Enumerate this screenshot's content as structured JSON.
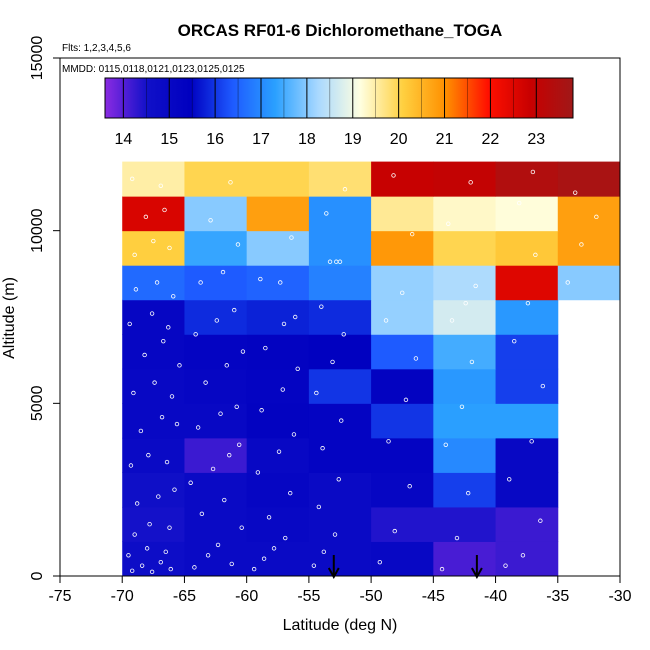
{
  "chart_data": {
    "type": "heatmap",
    "title": "ORCAS RF01-6 Dichloromethane_TOGA",
    "flights_label": "Flts: 1,2,3,4,5,6",
    "dates_label": "MMDD: 0115,0118,0121,0123,0125,0125",
    "xlabel": "Latitude (deg N)",
    "ylabel": "Altitude (m)",
    "xlim": [
      -75,
      -30
    ],
    "ylim": [
      0,
      15000
    ],
    "x_ticks": [
      -75,
      -70,
      -65,
      -60,
      -55,
      -50,
      -45,
      -40,
      -35,
      -30
    ],
    "x_tick_labels": [
      "-75",
      "-70",
      "-65",
      "-60",
      "-55",
      "-50",
      "-45",
      "-40",
      "-35",
      "-30"
    ],
    "y_ticks": [
      0,
      5000,
      10000,
      15000
    ],
    "y_tick_labels": [
      "0",
      "5000",
      "10000",
      "15000"
    ],
    "colorbar": {
      "min": 13.6,
      "max": 23.8,
      "ticks": [
        14,
        15,
        16,
        17,
        18,
        19,
        20,
        21,
        22,
        23
      ],
      "tick_labels": [
        "14",
        "15",
        "16",
        "17",
        "18",
        "19",
        "20",
        "21",
        "22",
        "23"
      ],
      "stops": [
        "#8a2be2",
        "#1010c8",
        "#0000c0",
        "#1e5aff",
        "#2aa0ff",
        "#a8d8ff",
        "#ffffe0",
        "#ffd040",
        "#ff9000",
        "#ff1000",
        "#c80000",
        "#a01818"
      ]
    },
    "lat_bins": [
      -70,
      -65,
      -60,
      -55,
      -50,
      -45,
      -40,
      -35,
      -30
    ],
    "alt_bins": [
      0,
      1000,
      2000,
      3000,
      4000,
      5000,
      6000,
      7000,
      8000,
      9000,
      10000,
      11000,
      12000
    ],
    "cells": [
      [
        14.7,
        14.9,
        14.9,
        14.9,
        15.0,
        14.1,
        14.2,
        null
      ],
      [
        14.5,
        14.9,
        15.0,
        14.9,
        14.4,
        14.4,
        14.2,
        null
      ],
      [
        14.6,
        14.9,
        15.1,
        14.9,
        15.1,
        16.1,
        15.0,
        null
      ],
      [
        14.9,
        14.2,
        15.0,
        15.2,
        15.2,
        17.0,
        15.0,
        null
      ],
      [
        15.0,
        15.0,
        15.3,
        15.2,
        16.0,
        17.3,
        17.3,
        null
      ],
      [
        15.0,
        15.1,
        15.2,
        16.0,
        15.3,
        17.2,
        16.1,
        null
      ],
      [
        15.1,
        15.2,
        15.3,
        15.4,
        16.4,
        17.5,
        16.1,
        null
      ],
      [
        15.1,
        15.9,
        15.8,
        15.9,
        18.1,
        18.7,
        17.2,
        null
      ],
      [
        16.6,
        16.4,
        16.5,
        16.9,
        18.1,
        18.3,
        22.5,
        18.0
      ],
      [
        20.1,
        17.4,
        18.0,
        17.1,
        20.9,
        20.0,
        20.2,
        20.8
      ],
      [
        22.6,
        18.0,
        20.8,
        17.1,
        19.6,
        19.3,
        19.2,
        20.8
      ],
      [
        19.5,
        20.0,
        20.0,
        19.8,
        22.9,
        23.0,
        23.4,
        23.6
      ]
    ],
    "points": [
      [
        -69.2,
        150
      ],
      [
        -68.4,
        300
      ],
      [
        -67.6,
        120
      ],
      [
        -66.9,
        400
      ],
      [
        -66.1,
        200
      ],
      [
        -69.5,
        600
      ],
      [
        -68.0,
        800
      ],
      [
        -66.5,
        700
      ],
      [
        -69.0,
        1200
      ],
      [
        -67.8,
        1500
      ],
      [
        -66.2,
        1400
      ],
      [
        -68.8,
        2100
      ],
      [
        -67.1,
        2300
      ],
      [
        -65.8,
        2500
      ],
      [
        -69.3,
        3200
      ],
      [
        -67.9,
        3500
      ],
      [
        -66.4,
        3300
      ],
      [
        -68.5,
        4200
      ],
      [
        -66.8,
        4600
      ],
      [
        -65.6,
        4400
      ],
      [
        -69.1,
        5300
      ],
      [
        -67.4,
        5600
      ],
      [
        -66.0,
        5200
      ],
      [
        -68.2,
        6400
      ],
      [
        -66.7,
        6800
      ],
      [
        -65.4,
        6100
      ],
      [
        -69.4,
        7300
      ],
      [
        -67.6,
        7600
      ],
      [
        -66.3,
        7200
      ],
      [
        -68.9,
        8300
      ],
      [
        -67.2,
        8500
      ],
      [
        -65.9,
        8100
      ],
      [
        -69.0,
        9300
      ],
      [
        -67.5,
        9700
      ],
      [
        -66.2,
        9500
      ],
      [
        -68.1,
        10400
      ],
      [
        -66.6,
        10600
      ],
      [
        -69.2,
        11500
      ],
      [
        -66.9,
        11300
      ],
      [
        -64.2,
        250
      ],
      [
        -63.1,
        600
      ],
      [
        -62.3,
        900
      ],
      [
        -61.2,
        350
      ],
      [
        -60.4,
        1400
      ],
      [
        -63.6,
        1800
      ],
      [
        -61.8,
        2200
      ],
      [
        -64.5,
        2700
      ],
      [
        -62.7,
        3100
      ],
      [
        -61.4,
        3500
      ],
      [
        -60.6,
        3800
      ],
      [
        -63.9,
        4300
      ],
      [
        -62.1,
        4700
      ],
      [
        -60.8,
        4900
      ],
      [
        -63.3,
        5600
      ],
      [
        -61.6,
        6100
      ],
      [
        -60.3,
        6500
      ],
      [
        -64.1,
        7000
      ],
      [
        -62.4,
        7400
      ],
      [
        -61.0,
        7700
      ],
      [
        -63.7,
        8500
      ],
      [
        -61.9,
        8800
      ],
      [
        -60.7,
        9600
      ],
      [
        -62.9,
        10300
      ],
      [
        -61.3,
        11400
      ],
      [
        -59.4,
        200
      ],
      [
        -58.6,
        500
      ],
      [
        -57.8,
        800
      ],
      [
        -56.9,
        1100
      ],
      [
        -58.2,
        1700
      ],
      [
        -56.5,
        2400
      ],
      [
        -59.1,
        3000
      ],
      [
        -57.4,
        3600
      ],
      [
        -56.2,
        4100
      ],
      [
        -58.8,
        4800
      ],
      [
        -57.1,
        5400
      ],
      [
        -55.9,
        6000
      ],
      [
        -58.5,
        6600
      ],
      [
        -57.0,
        7300
      ],
      [
        -56.1,
        7500
      ],
      [
        -58.9,
        8600
      ],
      [
        -57.3,
        8500
      ],
      [
        -56.4,
        9800
      ],
      [
        -54.6,
        300
      ],
      [
        -53.8,
        700
      ],
      [
        -52.9,
        1200
      ],
      [
        -54.2,
        2000
      ],
      [
        -52.6,
        2800
      ],
      [
        -53.9,
        3700
      ],
      [
        -52.4,
        4500
      ],
      [
        -54.4,
        5300
      ],
      [
        -53.1,
        6200
      ],
      [
        -52.2,
        7000
      ],
      [
        -54.0,
        7800
      ],
      [
        -53.3,
        9100
      ],
      [
        -52.8,
        9100
      ],
      [
        -52.5,
        9100
      ],
      [
        -53.6,
        10500
      ],
      [
        -52.1,
        11200
      ],
      [
        -49.3,
        400
      ],
      [
        -48.1,
        1300
      ],
      [
        -46.9,
        2600
      ],
      [
        -48.6,
        3900
      ],
      [
        -47.2,
        5100
      ],
      [
        -46.4,
        6300
      ],
      [
        -48.8,
        7400
      ],
      [
        -47.5,
        8200
      ],
      [
        -46.7,
        9900
      ],
      [
        -48.2,
        11600
      ],
      [
        -44.3,
        200
      ],
      [
        -43.1,
        1100
      ],
      [
        -42.2,
        2400
      ],
      [
        -44.0,
        3800
      ],
      [
        -42.7,
        4900
      ],
      [
        -41.9,
        6200
      ],
      [
        -43.5,
        7400
      ],
      [
        -42.4,
        7900
      ],
      [
        -41.6,
        8400
      ],
      [
        -43.8,
        10200
      ],
      [
        -42.0,
        11400
      ],
      [
        -39.2,
        300
      ],
      [
        -37.8,
        600
      ],
      [
        -36.4,
        1600
      ],
      [
        -38.9,
        2800
      ],
      [
        -37.1,
        3900
      ],
      [
        -36.2,
        5500
      ],
      [
        -38.5,
        6800
      ],
      [
        -37.4,
        7900
      ],
      [
        -36.8,
        9300
      ],
      [
        -38.1,
        10800
      ],
      [
        -37.0,
        11700
      ],
      [
        -34.2,
        8500
      ],
      [
        -33.1,
        9600
      ],
      [
        -31.9,
        10400
      ],
      [
        -33.6,
        11100
      ]
    ],
    "arrows": [
      -53.0,
      -41.5
    ]
  }
}
